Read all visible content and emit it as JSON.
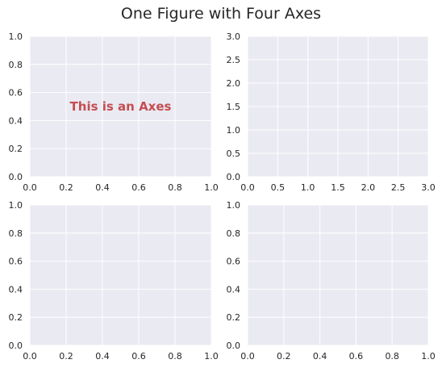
{
  "figure": {
    "title": "One Figure with Four Axes"
  },
  "style": {
    "axes_bg": "#eaeaf2",
    "grid_color": "#ffffff",
    "text_color": "#262626",
    "annotation_color": "#c44e52"
  },
  "chart_data": [
    {
      "type": "scatter",
      "title": "",
      "xlabel": "",
      "ylabel": "",
      "xlim": [
        0,
        1
      ],
      "ylim": [
        0,
        1
      ],
      "xticks": [
        "0.0",
        "0.2",
        "0.4",
        "0.6",
        "0.8",
        "1.0"
      ],
      "yticks": [
        "0.0",
        "0.2",
        "0.4",
        "0.6",
        "0.8",
        "1.0"
      ],
      "grid": true,
      "series": [],
      "annotation": {
        "text": "This is an Axes",
        "x": 0.5,
        "y": 0.5
      }
    },
    {
      "type": "scatter",
      "title": "",
      "xlabel": "",
      "ylabel": "",
      "xlim": [
        0,
        3
      ],
      "ylim": [
        0,
        3
      ],
      "xticks": [
        "0.0",
        "0.5",
        "1.0",
        "1.5",
        "2.0",
        "2.5",
        "3.0"
      ],
      "yticks": [
        "0.0",
        "0.5",
        "1.0",
        "1.5",
        "2.0",
        "2.5",
        "3.0"
      ],
      "grid": true,
      "series": []
    },
    {
      "type": "scatter",
      "title": "",
      "xlabel": "",
      "ylabel": "",
      "xlim": [
        0,
        1
      ],
      "ylim": [
        0,
        1
      ],
      "xticks": [
        "0.0",
        "0.2",
        "0.4",
        "0.6",
        "0.8",
        "1.0"
      ],
      "yticks": [
        "0.0",
        "0.2",
        "0.4",
        "0.6",
        "0.8",
        "1.0"
      ],
      "grid": true,
      "series": []
    },
    {
      "type": "scatter",
      "title": "",
      "xlabel": "",
      "ylabel": "",
      "xlim": [
        0,
        1
      ],
      "ylim": [
        0,
        1
      ],
      "xticks": [
        "0.0",
        "0.2",
        "0.4",
        "0.6",
        "0.8",
        "1.0"
      ],
      "yticks": [
        "0.0",
        "0.2",
        "0.4",
        "0.6",
        "0.8",
        "1.0"
      ],
      "grid": true,
      "series": []
    }
  ]
}
